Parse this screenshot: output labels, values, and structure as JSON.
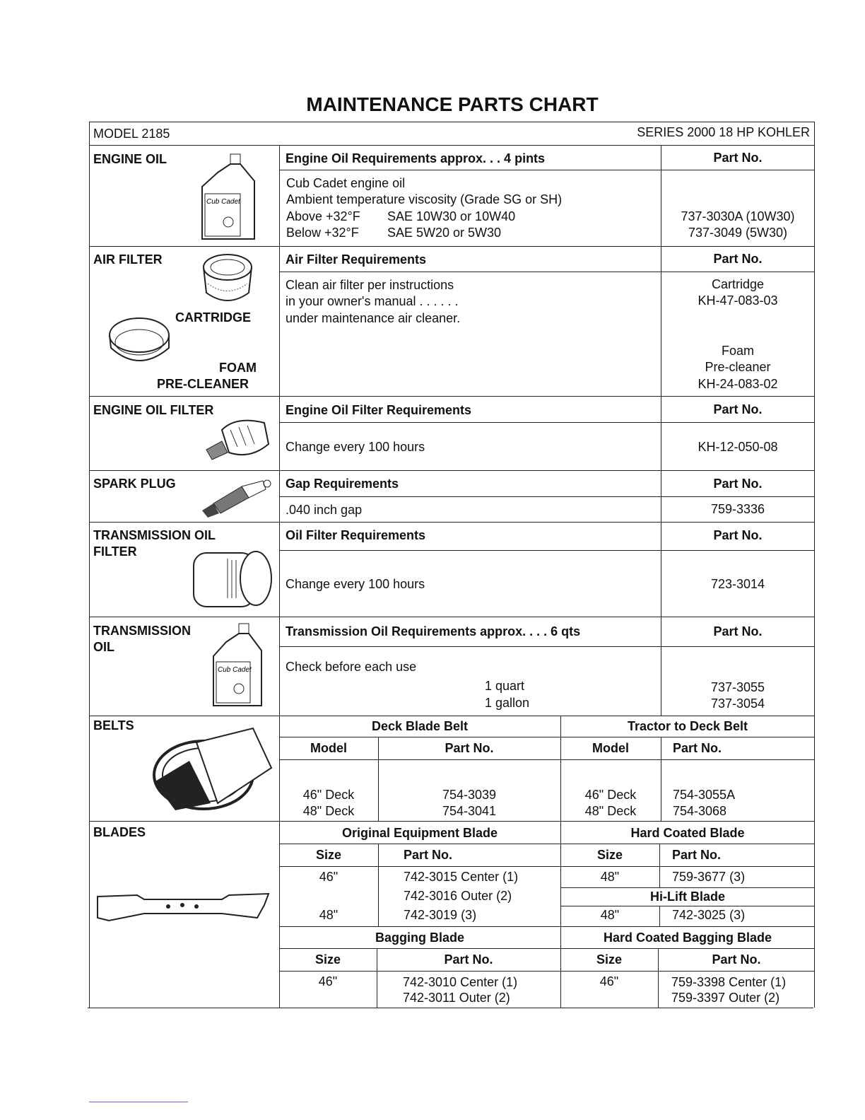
{
  "title": "MAINTENANCE PARTS CHART",
  "model": "MODEL 2185",
  "series": "SERIES 2000 18 HP KOHLER",
  "part_no_label": "Part No.",
  "sections": {
    "engine_oil": {
      "label": "ENGINE OIL",
      "header": "Engine Oil Requirements approx. . . 4 pints",
      "lines": [
        "Cub Cadet engine oil",
        "Ambient temperature viscosity (Grade SG or SH)",
        "Above +32°F",
        "SAE 10W30 or 10W40",
        "Below +32°F",
        "SAE 5W20 or 5W30"
      ],
      "parts": [
        "737-3030A (10W30)",
        "737-3049  (5W30)"
      ],
      "icon": "oil-bottle-icon"
    },
    "air_filter": {
      "label": "AIR FILTER",
      "cartridge_label": "CARTRIDGE",
      "foam_label": "FOAM",
      "precleaner_label": "PRE-CLEANER",
      "header": "Air Filter Requirements",
      "lines": [
        "Clean air filter per instructions",
        "in your owner's manual . . . . . .",
        "under maintenance air cleaner."
      ],
      "parts": [
        "Cartridge",
        "KH-47-083-03",
        "Foam",
        "Pre-cleaner",
        "KH-24-083-02"
      ]
    },
    "engine_oil_filter": {
      "label": "ENGINE OIL FILTER",
      "header": "Engine Oil Filter Requirements",
      "text": "Change every 100 hours",
      "part": "KH-12-050-08"
    },
    "spark_plug": {
      "label": "SPARK PLUG",
      "header": "Gap Requirements",
      "text": ".040 inch gap",
      "part": "759-3336"
    },
    "transmission_oil_filter": {
      "label_1": "TRANSMISSION OIL",
      "label_2": "FILTER",
      "header": "Oil Filter Requirements",
      "text": "Change every 100 hours",
      "part": "723-3014"
    },
    "transmission_oil": {
      "label_1": "TRANSMISSION",
      "label_2": "OIL",
      "header": "Transmission Oil Requirements approx. . . . 6 qts",
      "text": "Check before each use",
      "sizes": [
        "1 quart",
        "1 gallon"
      ],
      "parts": [
        "737-3055",
        "737-3054"
      ]
    },
    "belts": {
      "label": "BELTS",
      "deck_header": "Deck Blade Belt",
      "tractor_header": "Tractor to Deck Belt",
      "model_label": "Model",
      "deck_rows": [
        {
          "model": "46\" Deck",
          "part": "754-3039"
        },
        {
          "model": "48\" Deck",
          "part": "754-3041"
        }
      ],
      "tractor_rows": [
        {
          "model": "46\" Deck",
          "part": "754-3055A"
        },
        {
          "model": "48\" Deck",
          "part": "754-3068"
        }
      ]
    },
    "blades": {
      "label": "BLADES",
      "size_label": "Size",
      "original_header": "Original Equipment Blade",
      "original_rows": [
        {
          "size": "46\"",
          "part": "742-3015 Center (1)"
        },
        {
          "size": "",
          "part": "742-3016 Outer (2)"
        },
        {
          "size": "48\"",
          "part": "742-3019 (3)"
        }
      ],
      "hard_header": "Hard Coated Blade",
      "hard_row": {
        "size": "48\"",
        "part": "759-3677 (3)"
      },
      "hilift_header": "Hi-Lift Blade",
      "hilift_row": {
        "size": "48\"",
        "part": "742-3025 (3)"
      },
      "bagging_header": "Bagging Blade",
      "bagging_rows": [
        {
          "size": "46\"",
          "part": "742-3010 Center (1)"
        },
        {
          "size": "",
          "part": "742-3011 Outer (2)"
        }
      ],
      "hard_bagging_header": "Hard Coated Bagging Blade",
      "hard_bagging_rows": [
        {
          "size": "46\"",
          "part": "759-3398 Center (1)"
        },
        {
          "size": "",
          "part": "759-3397 Outer (2)"
        }
      ]
    }
  }
}
